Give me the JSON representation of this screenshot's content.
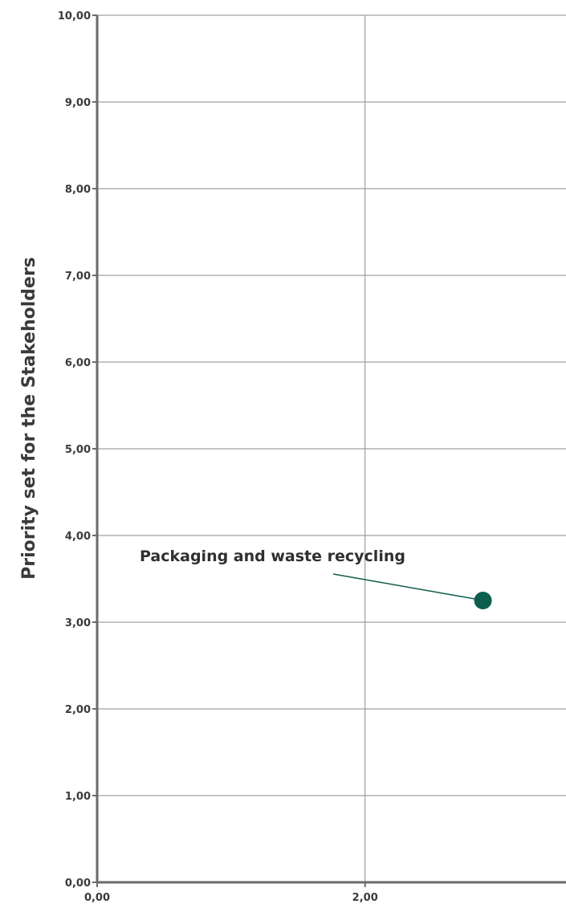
{
  "chart_data": {
    "type": "scatter",
    "title": "",
    "xlabel": "",
    "ylabel": "Priority set for the Stakeholders",
    "xlim": [
      0,
      3.5
    ],
    "ylim": [
      0,
      10
    ],
    "x_ticks": [
      "0,00",
      "2,00"
    ],
    "x_tick_values": [
      0,
      2
    ],
    "y_ticks": [
      "0,00",
      "1,00",
      "2,00",
      "3,00",
      "4,00",
      "5,00",
      "6,00",
      "7,00",
      "8,00",
      "9,00",
      "10,00"
    ],
    "y_tick_values": [
      0,
      1,
      2,
      3,
      4,
      5,
      6,
      7,
      8,
      9,
      10
    ],
    "grid": true,
    "legend": "none",
    "points": [
      {
        "label": "Packaging and waste recycling",
        "x": 2.88,
        "y": 3.25
      }
    ],
    "colors": {
      "point": "#0e5e4e",
      "leader": "#0e5e4e",
      "grid": "#8a8a8a",
      "axis": "#6a6a6a",
      "text": "#3a3a3a"
    }
  }
}
